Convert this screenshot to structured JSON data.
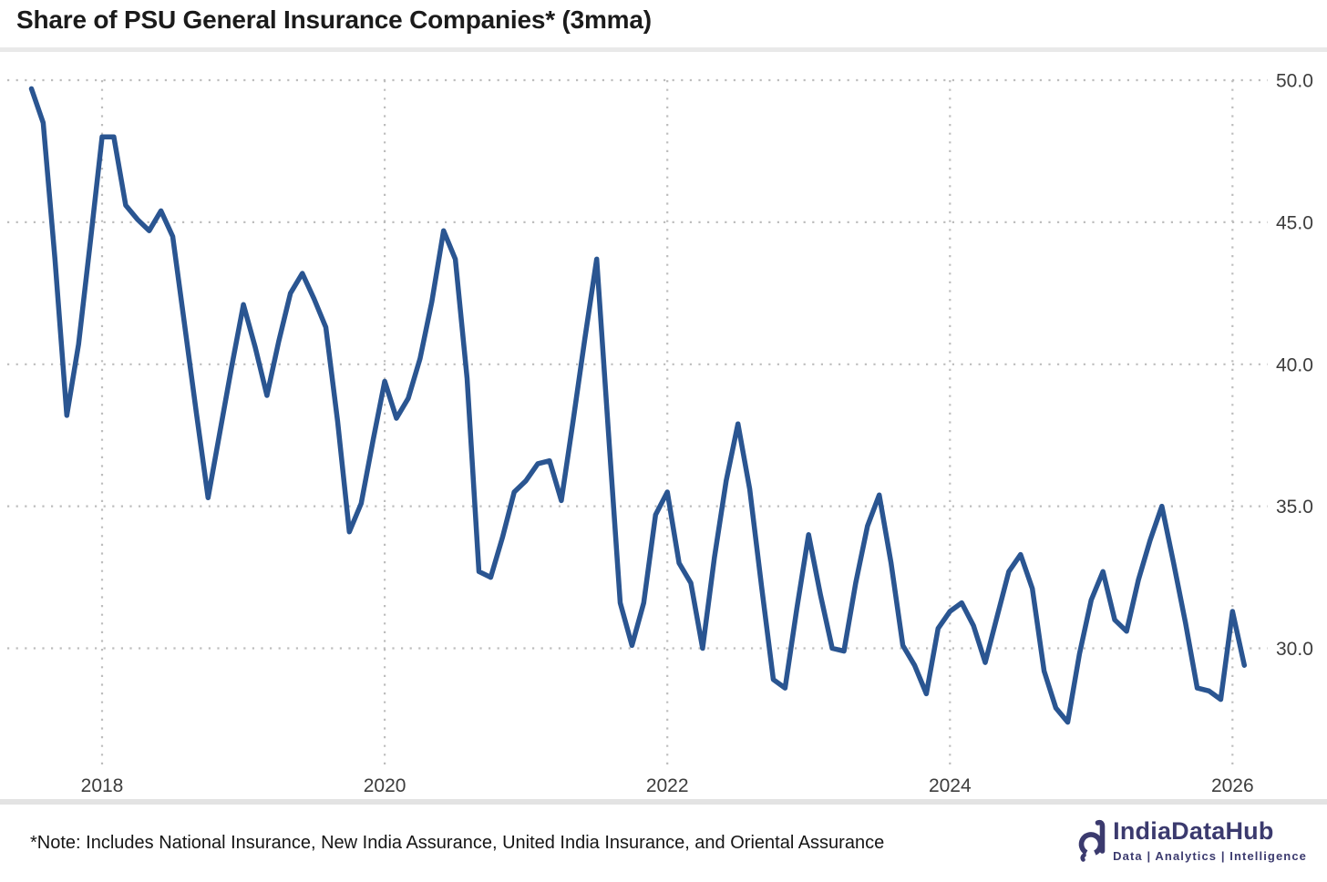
{
  "header": {
    "title": "Share of PSU General Insurance Companies* (3mma)"
  },
  "footer": {
    "note": "*Note: Includes National Insurance, New India Assurance, United India Insurance, and Oriental Assurance",
    "brand": {
      "name": "IndiaDataHub",
      "tagline": "Data | Analytics | Intelligence",
      "color": "#3b3a6e"
    }
  },
  "chart_data": {
    "type": "line",
    "title": "Share of PSU General Insurance Companies* (3mma)",
    "legend_position": "none",
    "grid": true,
    "line_color": "#2a5591",
    "grid_color": "#bdbdbd",
    "x_axis": {
      "tick_labels": [
        "2018",
        "2020",
        "2022",
        "2024",
        "2026"
      ],
      "tick_years": [
        2018,
        2020,
        2022,
        2024,
        2026
      ],
      "start_month": "2017-07",
      "end_month": "2026-02",
      "frequency": "monthly"
    },
    "y_axis": {
      "tick_labels": [
        "50.0",
        "45.0",
        "40.0",
        "35.0",
        "30.0"
      ],
      "tick_values": [
        50,
        45,
        40,
        35,
        30
      ],
      "labels_side": "right",
      "range_shown": [
        30,
        50
      ]
    },
    "values": [
      49.7,
      48.5,
      43.7,
      38.2,
      40.7,
      44.3,
      48.0,
      48.0,
      45.6,
      45.1,
      44.7,
      45.4,
      44.5,
      41.4,
      38.3,
      35.3,
      37.6,
      39.9,
      42.1,
      40.6,
      38.9,
      40.8,
      42.5,
      43.2,
      42.3,
      41.3,
      38.0,
      34.1,
      35.1,
      37.3,
      39.4,
      38.1,
      38.8,
      40.2,
      42.2,
      44.7,
      43.7,
      39.5,
      32.7,
      32.5,
      33.9,
      35.5,
      35.9,
      36.5,
      36.6,
      35.2,
      38.0,
      40.9,
      43.7,
      37.6,
      31.6,
      30.1,
      31.6,
      34.7,
      35.5,
      33.0,
      32.3,
      30.0,
      33.2,
      35.9,
      37.9,
      35.6,
      32.2,
      28.9,
      28.6,
      31.4,
      34.0,
      31.9,
      30.0,
      29.9,
      32.3,
      34.3,
      35.4,
      33.0,
      30.1,
      29.4,
      28.4,
      30.7,
      31.3,
      31.6,
      30.8,
      29.5,
      31.1,
      32.7,
      33.3,
      32.1,
      29.2,
      27.9,
      27.4,
      29.8,
      31.7,
      32.7,
      31.0,
      30.6,
      32.4,
      33.8,
      35.0,
      33.0,
      30.9,
      28.6,
      28.5,
      28.2,
      31.3,
      29.4
    ]
  }
}
